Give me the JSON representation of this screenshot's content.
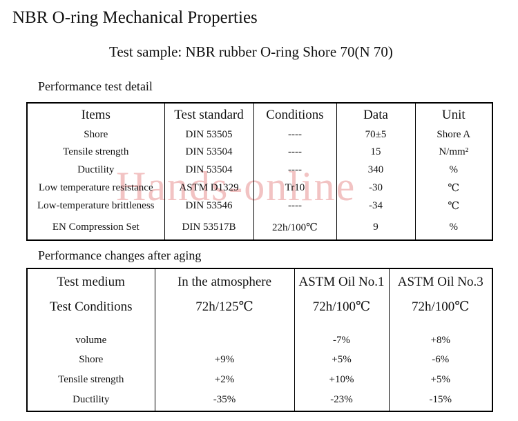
{
  "title": "NBR O-ring Mechanical Properties",
  "subtitle": "Test sample: NBR rubber O-ring Shore 70(N 70)",
  "watermark": {
    "text": "Hands-online",
    "color": "#f2c3c3"
  },
  "section1": {
    "heading": "Performance test detail",
    "table": {
      "headers": [
        "Items",
        "Test standard",
        "Conditions",
        "Data",
        "Unit"
      ],
      "rows": [
        [
          "Shore",
          "DIN 53505",
          "----",
          "70±5",
          "Shore A"
        ],
        [
          "Tensile strength",
          "DIN 53504",
          "----",
          "15",
          "N/mm²"
        ],
        [
          "Ductility",
          "DIN 53504",
          "----",
          "340",
          "%"
        ],
        [
          "Low temperature resistance",
          "ASTM D1329",
          "Tr10",
          "-30",
          "℃"
        ],
        [
          "Low-temperature brittleness",
          "DIN 53546",
          "----",
          "-34",
          "℃"
        ],
        [
          "EN Compression Set",
          "DIN 53517B",
          "22h/100℃",
          "9",
          "%"
        ]
      ]
    }
  },
  "section2": {
    "heading": "Performance changes after aging",
    "table": {
      "header_row1": [
        "Test medium",
        "In the atmosphere",
        "ASTM Oil No.1",
        "ASTM Oil No.3"
      ],
      "header_row2": [
        "Test Conditions",
        "72h/125℃",
        "72h/100℃",
        "72h/100℃"
      ],
      "rows": [
        [
          "volume",
          "",
          "-7%",
          "+8%"
        ],
        [
          "Shore",
          "+9%",
          "+5%",
          "-6%"
        ],
        [
          "Tensile strength",
          "+2%",
          "+10%",
          "+5%"
        ],
        [
          "Ductility",
          "-35%",
          "-23%",
          "-15%"
        ]
      ]
    }
  }
}
